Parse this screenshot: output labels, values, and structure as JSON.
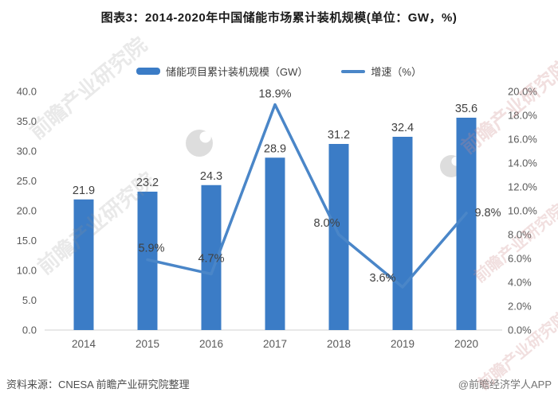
{
  "header": {
    "title": "图表3：2014-2020年中国储能市场累计装机规模(单位：GW，%)"
  },
  "legend": [
    {
      "label": "储能项目累计装机规模（GW）",
      "type": "bar"
    },
    {
      "label": "增速（%）",
      "type": "line"
    }
  ],
  "chart_data": {
    "type": "bar",
    "subtype": "bar+line combo, dual axis",
    "categories": [
      "2014",
      "2015",
      "2016",
      "2017",
      "2018",
      "2019",
      "2020"
    ],
    "series": [
      {
        "name": "储能项目累计装机规模（GW）",
        "type": "bar",
        "axis": "left",
        "values": [
          21.9,
          23.2,
          24.3,
          28.9,
          31.2,
          32.4,
          35.6
        ]
      },
      {
        "name": "增速（%）",
        "type": "line",
        "axis": "right",
        "values": [
          null,
          5.9,
          4.7,
          18.9,
          8.0,
          3.6,
          9.8
        ]
      }
    ],
    "title": "图表3：2014-2020年中国储能市场累计装机规模(单位：GW，%)",
    "xlabel": "",
    "ylabel_left": "GW",
    "ylabel_right": "%",
    "left_axis": {
      "min": 0,
      "max": 40,
      "step": 5,
      "tick_suffix": ""
    },
    "right_axis": {
      "min": 0,
      "max": 20,
      "step": 2,
      "tick_suffix": "%"
    },
    "grid": false,
    "legend_position": "top",
    "data_labels": true
  },
  "footer": {
    "source": "资料来源：CNESA 前瞻产业研究院整理",
    "credit": "@前瞻经济学人APP"
  },
  "watermark": {
    "text": "前瞻产业研究院"
  },
  "colors": {
    "bar": "#3B7CC6",
    "line": "#4A86C8",
    "data_label": "#404040",
    "axis_label": "#595959",
    "baseline": "#D9D9D9"
  }
}
